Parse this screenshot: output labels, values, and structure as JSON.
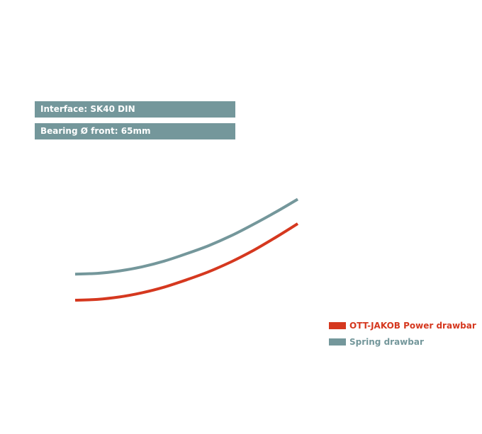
{
  "info_bars": [
    {
      "text": "Interface: SK40 DIN",
      "color": "#74979b"
    },
    {
      "text": "Bearing Ø front: 65mm",
      "color": "#74979b"
    }
  ],
  "chart_data": {
    "type": "line",
    "title": "",
    "xlabel": "",
    "ylabel": "",
    "grid": false,
    "legend_position": "bottom-right",
    "xlim": [
      0,
      10
    ],
    "ylim": [
      0,
      10
    ],
    "series": [
      {
        "name": "OTT-JAKOB Power drawbar",
        "color": "#d5381f",
        "x": [
          0,
          1,
          2,
          3,
          4,
          5,
          6,
          7,
          8,
          9,
          10
        ],
        "y": [
          2.0,
          2.05,
          2.2,
          2.45,
          2.8,
          3.25,
          3.75,
          4.35,
          5.05,
          5.85,
          6.7
        ]
      },
      {
        "name": "Spring drawbar",
        "color": "#74979b",
        "x": [
          0,
          1,
          2,
          3,
          4,
          5,
          6,
          7,
          8,
          9,
          10
        ],
        "y": [
          3.6,
          3.65,
          3.8,
          4.05,
          4.4,
          4.85,
          5.35,
          5.95,
          6.65,
          7.4,
          8.2
        ]
      }
    ]
  }
}
